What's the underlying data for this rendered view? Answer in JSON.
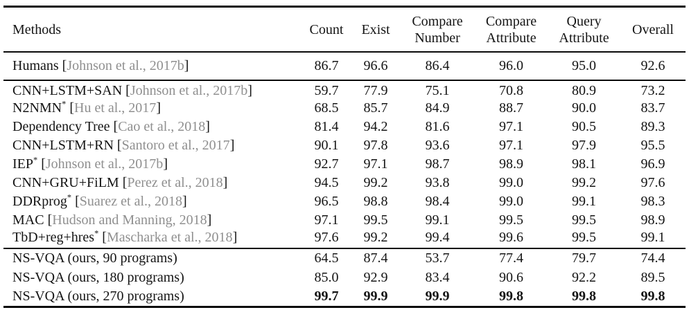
{
  "punctuation": {
    "open_bracket": "[",
    "close_bracket": "]",
    "asterisk": "*"
  },
  "colors": {
    "background": "#ffffff",
    "text": "#141414",
    "citation_gray": "#8f8f8f",
    "rule_black": "#0a0a0a"
  },
  "chart_data": {
    "type": "table",
    "title": "",
    "columns": [
      "Methods",
      "Count",
      "Exist",
      "Compare Number",
      "Compare Attribute",
      "Query Attribute",
      "Overall"
    ],
    "rows": [
      [
        "Humans [Johnson et al., 2017b]",
        86.7,
        96.6,
        86.4,
        96.0,
        95.0,
        92.6
      ],
      [
        "CNN+LSTM+SAN [Johnson et al., 2017b]",
        59.7,
        77.9,
        75.1,
        70.8,
        80.9,
        73.2
      ],
      [
        "N2NMN* [Hu et al., 2017]",
        68.5,
        85.7,
        84.9,
        88.7,
        90.0,
        83.7
      ],
      [
        "Dependency Tree [Cao et al., 2018]",
        81.4,
        94.2,
        81.6,
        97.1,
        90.5,
        89.3
      ],
      [
        "CNN+LSTM+RN [Santoro et al., 2017]",
        90.1,
        97.8,
        93.6,
        97.1,
        97.9,
        95.5
      ],
      [
        "IEP* [Johnson et al., 2017b]",
        92.7,
        97.1,
        98.7,
        98.9,
        98.1,
        96.9
      ],
      [
        "CNN+GRU+FiLM [Perez et al., 2018]",
        94.5,
        99.2,
        93.8,
        99.0,
        99.2,
        97.6
      ],
      [
        "DDRprog* [Suarez et al., 2018]",
        96.5,
        98.8,
        98.4,
        99.0,
        99.1,
        98.3
      ],
      [
        "MAC [Hudson and Manning, 2018]",
        97.1,
        99.5,
        99.1,
        99.5,
        99.5,
        98.9
      ],
      [
        "TbD+reg+hres* [Mascharka et al., 2018]",
        97.6,
        99.2,
        99.4,
        99.6,
        99.5,
        99.1
      ],
      [
        "NS-VQA (ours, 90 programs)",
        64.5,
        87.4,
        53.7,
        77.4,
        79.7,
        74.4
      ],
      [
        "NS-VQA (ours, 180 programs)",
        85.0,
        92.9,
        83.4,
        90.6,
        92.2,
        89.5
      ],
      [
        "NS-VQA (ours, 270 programs)",
        99.7,
        99.9,
        99.9,
        99.8,
        99.8,
        99.8
      ]
    ]
  },
  "table": {
    "columns": [
      {
        "id": "methods",
        "lines": [
          "Methods"
        ]
      },
      {
        "id": "count",
        "lines": [
          "Count"
        ]
      },
      {
        "id": "exist",
        "lines": [
          "Exist"
        ]
      },
      {
        "id": "compare-number",
        "lines": [
          "Compare",
          "Number"
        ]
      },
      {
        "id": "compare-attribute",
        "lines": [
          "Compare",
          "Attribute"
        ]
      },
      {
        "id": "query-attribute",
        "lines": [
          "Query",
          "Attribute"
        ]
      },
      {
        "id": "overall",
        "lines": [
          "Overall"
        ]
      }
    ],
    "groups": [
      {
        "id": "humans",
        "rows": [
          {
            "method": "Humans",
            "citation": "Johnson et al., 2017b",
            "values": [
              "86.7",
              "96.6",
              "86.4",
              "96.0",
              "95.0",
              "92.6"
            ]
          }
        ]
      },
      {
        "id": "prior",
        "rows": [
          {
            "method": "CNN+LSTM+SAN",
            "citation": "Johnson et al., 2017b",
            "values": [
              "59.7",
              "77.9",
              "75.1",
              "70.8",
              "80.9",
              "73.2"
            ]
          },
          {
            "method": "N2NMN",
            "asterisk": true,
            "citation": "Hu et al., 2017",
            "values": [
              "68.5",
              "85.7",
              "84.9",
              "88.7",
              "90.0",
              "83.7"
            ]
          },
          {
            "method": "Dependency Tree",
            "citation": "Cao et al., 2018",
            "values": [
              "81.4",
              "94.2",
              "81.6",
              "97.1",
              "90.5",
              "89.3"
            ]
          },
          {
            "method": "CNN+LSTM+RN",
            "citation": "Santoro et al., 2017",
            "values": [
              "90.1",
              "97.8",
              "93.6",
              "97.1",
              "97.9",
              "95.5"
            ]
          },
          {
            "method": "IEP",
            "asterisk": true,
            "citation": "Johnson et al., 2017b",
            "values": [
              "92.7",
              "97.1",
              "98.7",
              "98.9",
              "98.1",
              "96.9"
            ]
          },
          {
            "method": "CNN+GRU+FiLM",
            "citation": "Perez et al., 2018",
            "values": [
              "94.5",
              "99.2",
              "93.8",
              "99.0",
              "99.2",
              "97.6"
            ]
          },
          {
            "method": "DDRprog",
            "asterisk": true,
            "citation": "Suarez et al., 2018",
            "values": [
              "96.5",
              "98.8",
              "98.4",
              "99.0",
              "99.1",
              "98.3"
            ]
          },
          {
            "method": "MAC",
            "citation": "Hudson and Manning, 2018",
            "values": [
              "97.1",
              "99.5",
              "99.1",
              "99.5",
              "99.5",
              "98.9"
            ]
          },
          {
            "method": "TbD+reg+hres",
            "asterisk": true,
            "citation": "Mascharka et al., 2018",
            "values": [
              "97.6",
              "99.2",
              "99.4",
              "99.6",
              "99.5",
              "99.1"
            ]
          }
        ]
      },
      {
        "id": "ours",
        "rows": [
          {
            "method": "NS-VQA (ours, 90 programs)",
            "values": [
              "64.5",
              "87.4",
              "53.7",
              "77.4",
              "79.7",
              "74.4"
            ]
          },
          {
            "method": "NS-VQA (ours, 180 programs)",
            "values": [
              "85.0",
              "92.9",
              "83.4",
              "90.6",
              "92.2",
              "89.5"
            ]
          },
          {
            "method": "NS-VQA (ours, 270 programs)",
            "bold_values": true,
            "values": [
              "99.7",
              "99.9",
              "99.9",
              "99.8",
              "99.8",
              "99.8"
            ]
          }
        ]
      }
    ]
  }
}
